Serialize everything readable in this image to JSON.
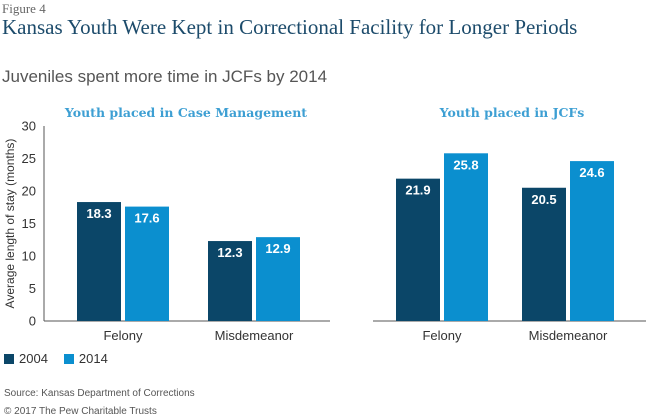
{
  "figure_label": "Figure 4",
  "title": "Kansas Youth Were Kept in Correctional Facility for Longer Periods",
  "subtitle": "Juveniles spent more time in JCFs by 2014",
  "source": "Source: Kansas Department of Corrections",
  "copyright": "© 2017 The Pew Charitable Trusts",
  "colors": {
    "series_2004": "#0b4668",
    "series_2014": "#0b8fcf",
    "panel_title": "#3d9fd3",
    "axis": "#555555",
    "grid": "#d9d9d9"
  },
  "legend": [
    {
      "label": "2004",
      "color": "#0b4668"
    },
    {
      "label": "2014",
      "color": "#0b8fcf"
    }
  ],
  "chart_data": [
    {
      "type": "bar",
      "title": "Youth placed in Case Management",
      "ylabel": "Average length of stay (months)",
      "ylim": [
        0,
        30
      ],
      "yticks": [
        0,
        5,
        10,
        15,
        20,
        25,
        30
      ],
      "categories": [
        "Felony",
        "Misdemeanor"
      ],
      "series": [
        {
          "name": "2004",
          "values": [
            18.3,
            12.3
          ],
          "labels": [
            "18.3",
            "12.3"
          ]
        },
        {
          "name": "2014",
          "values": [
            17.6,
            12.9
          ],
          "labels": [
            "17.6",
            "12.9"
          ]
        }
      ]
    },
    {
      "type": "bar",
      "title": "Youth placed in JCFs",
      "ylim": [
        0,
        30
      ],
      "categories": [
        "Felony",
        "Misdemeanor"
      ],
      "series": [
        {
          "name": "2004",
          "values": [
            21.9,
            20.5
          ],
          "labels": [
            "21.9",
            "20.5"
          ]
        },
        {
          "name": "2014",
          "values": [
            25.8,
            24.6
          ],
          "labels": [
            "25.8",
            "24.6"
          ]
        }
      ]
    }
  ]
}
